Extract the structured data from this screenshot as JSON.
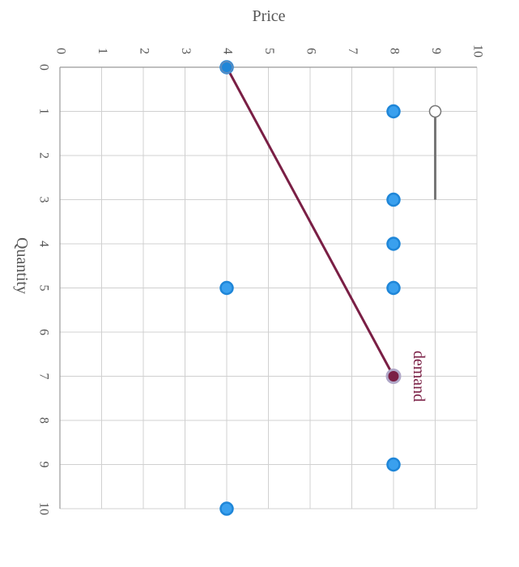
{
  "chart_data": {
    "type": "scatter",
    "title": "",
    "xlabel": "Price",
    "ylabel": "Quantity",
    "xlim": [
      0,
      10
    ],
    "ylim": [
      0,
      10
    ],
    "x_ticks": [
      "0",
      "1",
      "2",
      "3",
      "4",
      "5",
      "6",
      "7",
      "8",
      "9",
      "10"
    ],
    "y_ticks": [
      "0",
      "1",
      "2",
      "3",
      "4",
      "5",
      "6",
      "7",
      "8",
      "9",
      "10"
    ],
    "grid": true,
    "points": [
      {
        "price": 4,
        "quantity": 0
      },
      {
        "price": 8,
        "quantity": 1
      },
      {
        "price": 8,
        "quantity": 3
      },
      {
        "price": 8,
        "quantity": 4
      },
      {
        "price": 8,
        "quantity": 5
      },
      {
        "price": 4,
        "quantity": 5
      },
      {
        "price": 8,
        "quantity": 7
      },
      {
        "price": 8,
        "quantity": 9
      },
      {
        "price": 4,
        "quantity": 10
      }
    ],
    "demand_line": {
      "name": "demand",
      "color": "#7a1f45",
      "points": [
        {
          "price": 4,
          "quantity": 0
        },
        {
          "price": 8,
          "quantity": 7
        }
      ]
    },
    "gray_segment": {
      "color": "#777777",
      "points": [
        {
          "price": 9,
          "quantity": 1
        },
        {
          "price": 9,
          "quantity": 3
        }
      ]
    },
    "colors": {
      "point_fill": "#3aa0ee",
      "point_stroke": "#1f86d8",
      "grid": "#d0d0d0",
      "axis": "#999999",
      "text": "#555555"
    }
  }
}
